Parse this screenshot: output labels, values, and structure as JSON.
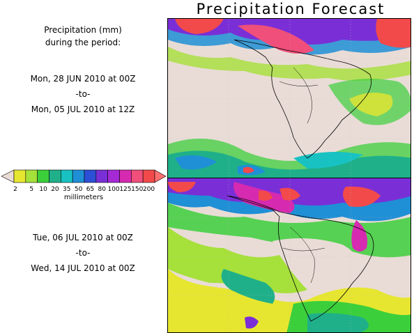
{
  "title": "Precipitation Forecast",
  "header": {
    "line1": "Precipitation (mm)",
    "line2": "during the period:"
  },
  "period1": {
    "start": "Mon, 28 JUN 2010 at 00Z",
    "sep": "-to-",
    "end": "Mon, 05 JUL 2010 at 12Z"
  },
  "period2": {
    "start": "Tue, 06 JUL 2010 at 00Z",
    "sep": "-to-",
    "end": "Wed, 14 JUL 2010 at 00Z"
  },
  "legend": {
    "unit": "millimeters",
    "ticks": [
      "2",
      "5",
      "10",
      "20",
      "35",
      "50",
      "65",
      "80",
      "100",
      "125",
      "150",
      "200"
    ],
    "colors": [
      "#e6e630",
      "#a6e03a",
      "#3ccf3c",
      "#1fb08a",
      "#19c2c2",
      "#1f8fd6",
      "#2c4fd6",
      "#7a2fd6",
      "#a52ad6",
      "#d62ab0",
      "#ef4f7a",
      "#f24a4a"
    ],
    "below_color": "#e9dcd6",
    "above_color": "#ff6e6e"
  }
}
